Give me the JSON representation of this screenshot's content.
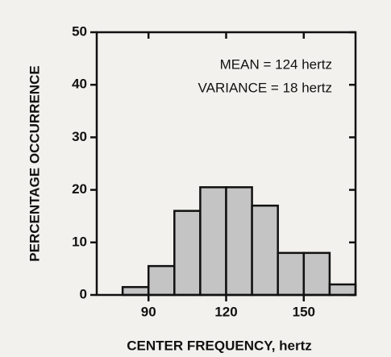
{
  "chart_data": {
    "type": "histogram",
    "xlabel": "CENTER FREQUENCY, hertz",
    "ylabel": "PERCENTAGE OCCURRENCE",
    "annotations": [
      "MEAN = 124 hertz",
      "VARIANCE = 18 hertz"
    ],
    "bins": [
      70,
      80,
      90,
      100,
      110,
      120,
      130,
      140,
      150,
      160,
      170
    ],
    "values": [
      0,
      1.5,
      5.5,
      16,
      20.5,
      20.5,
      17,
      8,
      8,
      2
    ],
    "color": "#c4c4c4",
    "xlim": [
      70,
      170
    ],
    "xticks": [
      90,
      120,
      150
    ],
    "ylim": [
      0,
      50
    ],
    "yticks": [
      0,
      10,
      20,
      30,
      40,
      50
    ]
  }
}
